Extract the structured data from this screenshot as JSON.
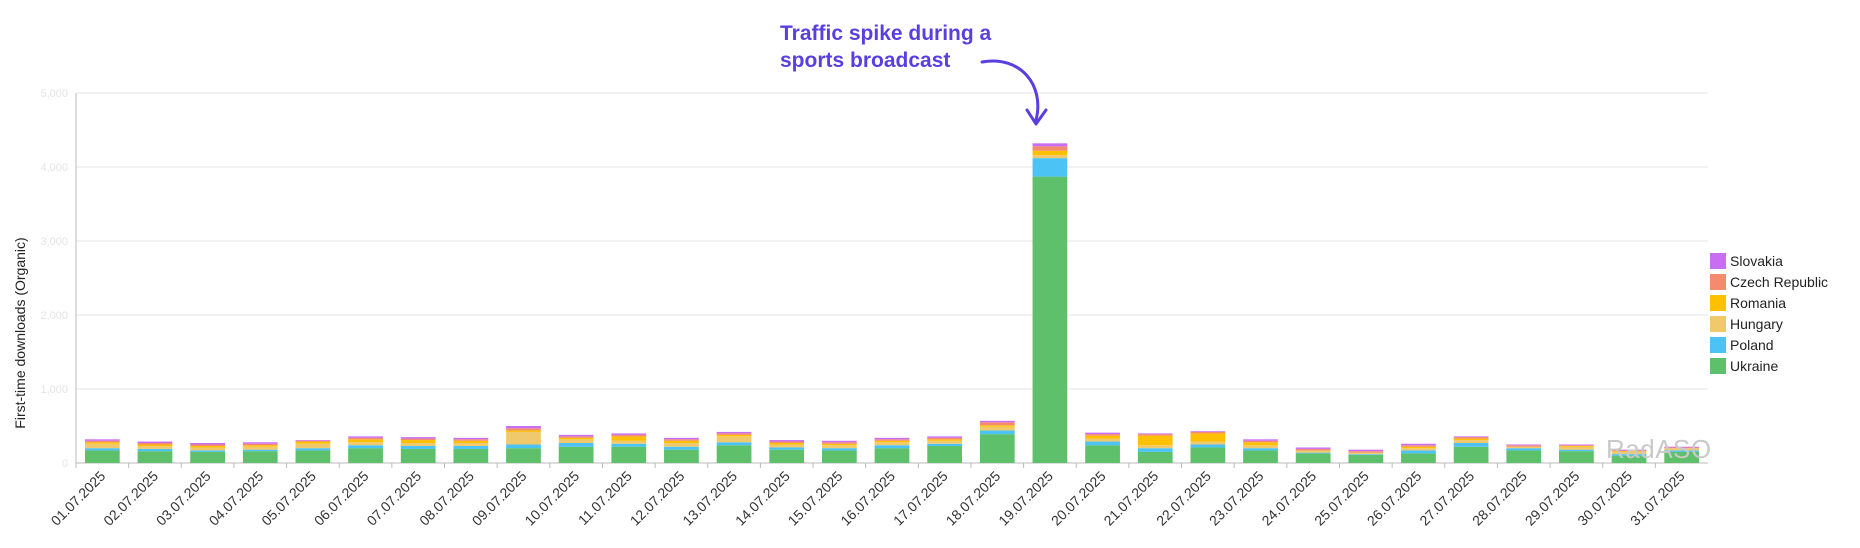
{
  "annotation": {
    "line1": "Traffic spike during a",
    "line2": "sports broadcast",
    "color": "#5a3fe0"
  },
  "watermark": "RadASO",
  "chart_data": {
    "type": "bar",
    "stacked": true,
    "title": "",
    "xlabel": "",
    "ylabel": "First-time downloads (Organic)",
    "ylim": [
      0,
      5000
    ],
    "yticks": [
      0,
      1000,
      2000,
      3000,
      4000,
      5000
    ],
    "ytick_labels": [
      "0",
      "1,000",
      "2,000",
      "3,000",
      "4,000",
      "5,000"
    ],
    "grid": true,
    "legend_position": "right",
    "categories": [
      "01.07.2025",
      "02.07.2025",
      "03.07.2025",
      "04.07.2025",
      "05.07.2025",
      "06.07.2025",
      "07.07.2025",
      "08.07.2025",
      "09.07.2025",
      "10.07.2025",
      "11.07.2025",
      "12.07.2025",
      "13.07.2025",
      "14.07.2025",
      "15.07.2025",
      "16.07.2025",
      "17.07.2025",
      "18.07.2025",
      "19.07.2025",
      "20.07.2025",
      "21.07.2025",
      "22.07.2025",
      "23.07.2025",
      "24.07.2025",
      "25.07.2025",
      "26.07.2025",
      "27.07.2025",
      "28.07.2025",
      "29.07.2025",
      "30.07.2025",
      "31.07.2025"
    ],
    "series": [
      {
        "name": "Ukraine",
        "color": "#5ec06a",
        "values": [
          170,
          160,
          150,
          160,
          170,
          200,
          190,
          190,
          200,
          220,
          220,
          180,
          240,
          180,
          170,
          200,
          230,
          390,
          3870,
          240,
          150,
          210,
          170,
          130,
          110,
          130,
          220,
          170,
          160,
          100,
          150
        ]
      },
      {
        "name": "Poland",
        "color": "#4cc3f5",
        "values": [
          30,
          30,
          20,
          20,
          30,
          40,
          40,
          40,
          50,
          50,
          40,
          40,
          40,
          30,
          30,
          40,
          30,
          50,
          250,
          50,
          50,
          40,
          30,
          10,
          10,
          40,
          50,
          30,
          20,
          20,
          20
        ]
      },
      {
        "name": "Hungary",
        "color": "#f0c96c",
        "values": [
          60,
          40,
          40,
          40,
          60,
          40,
          40,
          40,
          170,
          50,
          40,
          50,
          80,
          40,
          40,
          40,
          40,
          50,
          40,
          40,
          40,
          40,
          40,
          30,
          20,
          30,
          40,
          20,
          40,
          30,
          30
        ]
      },
      {
        "name": "Romania",
        "color": "#ffc000",
        "values": [
          20,
          20,
          20,
          20,
          30,
          40,
          40,
          30,
          20,
          20,
          60,
          30,
          20,
          20,
          20,
          20,
          20,
          20,
          60,
          40,
          130,
          110,
          40,
          0,
          0,
          20,
          20,
          0,
          10,
          10,
          0
        ]
      },
      {
        "name": "Czech Republic",
        "color": "#f48a6e",
        "values": [
          20,
          20,
          20,
          20,
          10,
          20,
          20,
          20,
          30,
          20,
          20,
          20,
          20,
          20,
          20,
          20,
          20,
          40,
          60,
          20,
          20,
          20,
          20,
          20,
          20,
          20,
          20,
          20,
          10,
          10,
          10
        ]
      },
      {
        "name": "Slovakia",
        "color": "#c86ef2",
        "values": [
          20,
          20,
          20,
          20,
          10,
          20,
          20,
          20,
          30,
          20,
          20,
          20,
          20,
          20,
          20,
          20,
          20,
          20,
          40,
          20,
          10,
          10,
          20,
          20,
          20,
          20,
          10,
          10,
          10,
          10,
          10
        ]
      }
    ]
  }
}
